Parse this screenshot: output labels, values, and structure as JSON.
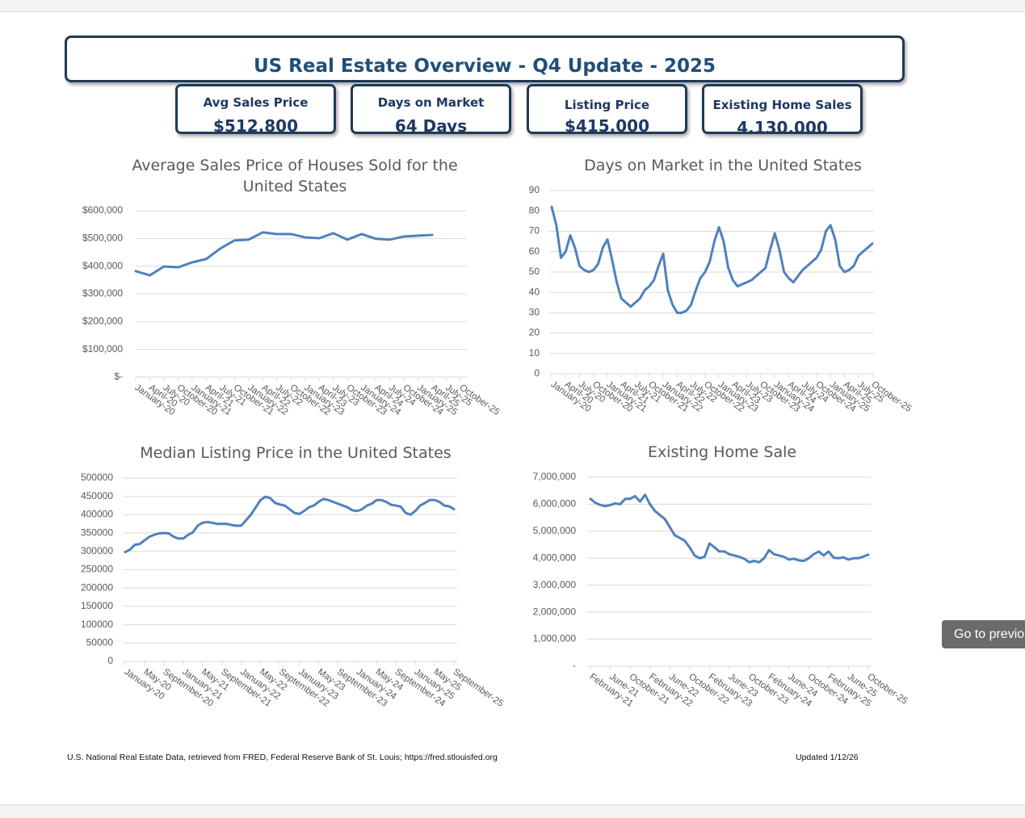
{
  "header": {
    "title": "US Real Estate Overview - Q4 Update - 2025"
  },
  "kpis": [
    {
      "label": "Avg Sales Price",
      "value": "$512,800"
    },
    {
      "label": "Days on Market",
      "value": "64 Days"
    },
    {
      "label": "Listing Price",
      "value": "$415,000"
    },
    {
      "label": "Existing Home Sales",
      "value": "4,130,000"
    }
  ],
  "chart_data": [
    {
      "type": "line",
      "title": "Average Sales Price of Houses Sold for the United States",
      "color": "#4f81bd",
      "grid": true,
      "categories": [
        "January-20",
        "April-20",
        "July-20",
        "October-20",
        "January-21",
        "April-21",
        "July-21",
        "October-21",
        "January-22",
        "April-22",
        "July-22",
        "October-22",
        "January-23",
        "April-23",
        "July-23",
        "October-23",
        "January-24",
        "April-24",
        "July-24",
        "October-24",
        "January-25",
        "April-25",
        "July-25",
        "October-25"
      ],
      "values": [
        382000,
        367000,
        399000,
        396000,
        414000,
        426000,
        464000,
        493000,
        496000,
        522000,
        516000,
        516000,
        504000,
        501000,
        519000,
        496000,
        516000,
        499000,
        496000,
        507000,
        510000,
        512800,
        null,
        null
      ],
      "ylim": [
        0,
        600000
      ],
      "yticks": [
        {
          "value": 0,
          "label": "$-"
        },
        {
          "value": 100000,
          "label": "$100,000"
        },
        {
          "value": 200000,
          "label": "$200,000"
        },
        {
          "value": 300000,
          "label": "$300,000"
        },
        {
          "value": 400000,
          "label": "$400,000"
        },
        {
          "value": 500000,
          "label": "$500,000"
        },
        {
          "value": 600000,
          "label": "$600,000"
        }
      ]
    },
    {
      "type": "line",
      "title": "Days on Market in the United States",
      "color": "#4f81bd",
      "grid": true,
      "categories": [
        "January-20",
        null,
        null,
        "April-20",
        null,
        null,
        "July-20",
        null,
        null,
        "October-20",
        null,
        null,
        "January-21",
        null,
        null,
        "April-21",
        null,
        null,
        "July-21",
        null,
        null,
        "October-21",
        null,
        null,
        "January-22",
        null,
        null,
        "April-22",
        null,
        null,
        "July-22",
        null,
        null,
        "October-22",
        null,
        null,
        "January-23",
        null,
        null,
        "April-23",
        null,
        null,
        "July-23",
        null,
        null,
        "October-23",
        null,
        null,
        "January-24",
        null,
        null,
        "April-24",
        null,
        null,
        "July-24",
        null,
        null,
        "October-24",
        null,
        null,
        "January-25",
        null,
        null,
        "April-25",
        null,
        null,
        "July-25",
        null,
        null,
        "October-25"
      ],
      "values": [
        82,
        73,
        57,
        60,
        68,
        62,
        53,
        51,
        50,
        51,
        54,
        62,
        66,
        56,
        45,
        37,
        35,
        33,
        35,
        37,
        41,
        43,
        46,
        53,
        59,
        41,
        34,
        30,
        30,
        31,
        34,
        41,
        47,
        50,
        55,
        65,
        72,
        65,
        52,
        46,
        43,
        44,
        45,
        46,
        48,
        50,
        52,
        61,
        69,
        61,
        50,
        47,
        45,
        48,
        51,
        53,
        55,
        57,
        61,
        70,
        73,
        66,
        53,
        50,
        51,
        53,
        58,
        60,
        62,
        64
      ],
      "ylim": [
        0,
        90
      ],
      "yticks": [
        0,
        10,
        20,
        30,
        40,
        50,
        60,
        70,
        80,
        90
      ]
    },
    {
      "type": "line",
      "title": "Median Listing Price in the United States",
      "color": "#4f81bd",
      "grid": true,
      "categories": [
        "January-20",
        null,
        null,
        null,
        "May-20",
        null,
        null,
        null,
        "September-20",
        null,
        null,
        null,
        "January-21",
        null,
        null,
        null,
        "May-21",
        null,
        null,
        null,
        "September-21",
        null,
        null,
        null,
        "January-22",
        null,
        null,
        null,
        "May-22",
        null,
        null,
        null,
        "September-22",
        null,
        null,
        null,
        "January-23",
        null,
        null,
        null,
        "May-23",
        null,
        null,
        null,
        "September-23",
        null,
        null,
        null,
        "January-24",
        null,
        null,
        null,
        "May-24",
        null,
        null,
        null,
        "September-24",
        null,
        null,
        null,
        "January-25",
        null,
        null,
        null,
        "May-25",
        null,
        null,
        null,
        "September-25"
      ],
      "values": [
        298000,
        305000,
        318000,
        320000,
        330000,
        340000,
        345000,
        349000,
        350000,
        349000,
        340000,
        335000,
        335000,
        345000,
        352000,
        370000,
        378000,
        380000,
        378000,
        375000,
        375000,
        375000,
        372000,
        370000,
        370000,
        385000,
        400000,
        420000,
        440000,
        449000,
        445000,
        432000,
        428000,
        425000,
        415000,
        405000,
        402000,
        410000,
        420000,
        425000,
        435000,
        443000,
        440000,
        435000,
        430000,
        425000,
        420000,
        412000,
        410000,
        415000,
        425000,
        430000,
        440000,
        440000,
        435000,
        427000,
        425000,
        422000,
        405000,
        400000,
        410000,
        425000,
        432000,
        440000,
        440000,
        435000,
        425000,
        423000,
        415000
      ],
      "ylim": [
        0,
        500000
      ],
      "yticks": [
        0,
        50000,
        100000,
        150000,
        200000,
        250000,
        300000,
        350000,
        400000,
        450000,
        500000
      ]
    },
    {
      "type": "line",
      "title": "Existing Home Sale",
      "color": "#4f81bd",
      "grid": true,
      "categories": [
        "February-21",
        null,
        null,
        null,
        "June-21",
        null,
        null,
        null,
        "October-21",
        null,
        null,
        null,
        "February-22",
        null,
        null,
        null,
        "June-22",
        null,
        null,
        null,
        "October-22",
        null,
        null,
        null,
        "February-23",
        null,
        null,
        null,
        "June-23",
        null,
        null,
        null,
        "October-23",
        null,
        null,
        null,
        "February-24",
        null,
        null,
        null,
        "June-24",
        null,
        null,
        null,
        "October-24",
        null,
        null,
        null,
        "February-25",
        null,
        null,
        null,
        "June-25",
        null,
        null,
        null,
        "October-25"
      ],
      "values": [
        6200000,
        6050000,
        5970000,
        5930000,
        5970000,
        6030000,
        6000000,
        6200000,
        6200000,
        6300000,
        6100000,
        6350000,
        6000000,
        5750000,
        5600000,
        5450000,
        5150000,
        4850000,
        4750000,
        4650000,
        4400000,
        4100000,
        4000000,
        4050000,
        4550000,
        4400000,
        4250000,
        4250000,
        4150000,
        4100000,
        4050000,
        3980000,
        3850000,
        3900000,
        3850000,
        4000000,
        4300000,
        4150000,
        4100000,
        4050000,
        3950000,
        3980000,
        3920000,
        3900000,
        4000000,
        4150000,
        4250000,
        4100000,
        4250000,
        4020000,
        4000000,
        4030000,
        3950000,
        4000000,
        4000000,
        4060000,
        4130000
      ],
      "ylim": [
        0,
        7000000
      ],
      "yticks": [
        {
          "value": 0,
          "label": "-"
        },
        {
          "value": 1000000,
          "label": "1,000,000"
        },
        {
          "value": 2000000,
          "label": "2,000,000"
        },
        {
          "value": 3000000,
          "label": "3,000,000"
        },
        {
          "value": 4000000,
          "label": "4,000,000"
        },
        {
          "value": 5000000,
          "label": "5,000,000"
        },
        {
          "value": 6000000,
          "label": "6,000,000"
        },
        {
          "value": 7000000,
          "label": "7,000,000"
        }
      ]
    }
  ],
  "footer": {
    "source": "U.S. National Real Estate Data, retrieved from FRED, Federal Reserve Bank of St. Louis; https://fred.stlouisfed.org",
    "updated": "Updated 1/12/26"
  },
  "nav_button": "Go to previo"
}
